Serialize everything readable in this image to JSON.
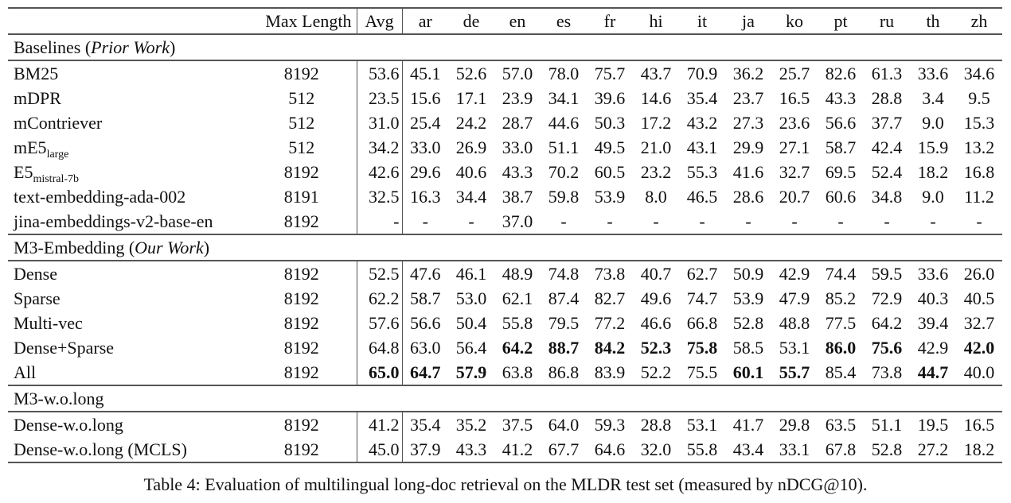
{
  "header": {
    "max_length": "Max Length",
    "avg": "Avg",
    "languages": [
      "ar",
      "de",
      "en",
      "es",
      "fr",
      "hi",
      "it",
      "ja",
      "ko",
      "pt",
      "ru",
      "th",
      "zh"
    ]
  },
  "groups": [
    {
      "title": "Baselines",
      "title_italic": "Prior Work",
      "rows": [
        {
          "name": "BM25",
          "sub": "",
          "max_length": "8192",
          "avg": "53.6",
          "values": [
            "45.1",
            "52.6",
            "57.0",
            "78.0",
            "75.7",
            "43.7",
            "70.9",
            "36.2",
            "25.7",
            "82.6",
            "61.3",
            "33.6",
            "34.6"
          ],
          "bold": []
        },
        {
          "name": "mDPR",
          "sub": "",
          "max_length": "512",
          "avg": "23.5",
          "values": [
            "15.6",
            "17.1",
            "23.9",
            "34.1",
            "39.6",
            "14.6",
            "35.4",
            "23.7",
            "16.5",
            "43.3",
            "28.8",
            "3.4",
            "9.5"
          ],
          "bold": []
        },
        {
          "name": "mContriever",
          "sub": "",
          "max_length": "512",
          "avg": "31.0",
          "values": [
            "25.4",
            "24.2",
            "28.7",
            "44.6",
            "50.3",
            "17.2",
            "43.2",
            "27.3",
            "23.6",
            "56.6",
            "37.7",
            "9.0",
            "15.3"
          ],
          "bold": []
        },
        {
          "name": "mE5",
          "sub": "large",
          "max_length": "512",
          "avg": "34.2",
          "values": [
            "33.0",
            "26.9",
            "33.0",
            "51.1",
            "49.5",
            "21.0",
            "43.1",
            "29.9",
            "27.1",
            "58.7",
            "42.4",
            "15.9",
            "13.2"
          ],
          "bold": []
        },
        {
          "name": "E5",
          "sub": "mistral-7b",
          "max_length": "8192",
          "avg": "42.6",
          "values": [
            "29.6",
            "40.6",
            "43.3",
            "70.2",
            "60.5",
            "23.2",
            "55.3",
            "41.6",
            "32.7",
            "69.5",
            "52.4",
            "18.2",
            "16.8"
          ],
          "bold": []
        },
        {
          "name": "text-embedding-ada-002",
          "sub": "",
          "max_length": "8191",
          "avg": "32.5",
          "values": [
            "16.3",
            "34.4",
            "38.7",
            "59.8",
            "53.9",
            "8.0",
            "46.5",
            "28.6",
            "20.7",
            "60.6",
            "34.8",
            "9.0",
            "11.2"
          ],
          "bold": []
        },
        {
          "name": "jina-embeddings-v2-base-en",
          "sub": "",
          "max_length": "8192",
          "avg": "-",
          "values": [
            "-",
            "-",
            "37.0",
            "-",
            "-",
            "-",
            "-",
            "-",
            "-",
            "-",
            "-",
            "-",
            "-"
          ],
          "bold": []
        }
      ]
    },
    {
      "title": "M3-Embedding",
      "title_italic": "Our Work",
      "rows": [
        {
          "name": "Dense",
          "sub": "",
          "max_length": "8192",
          "avg": "52.5",
          "values": [
            "47.6",
            "46.1",
            "48.9",
            "74.8",
            "73.8",
            "40.7",
            "62.7",
            "50.9",
            "42.9",
            "74.4",
            "59.5",
            "33.6",
            "26.0"
          ],
          "bold": []
        },
        {
          "name": "Sparse",
          "sub": "",
          "max_length": "8192",
          "avg": "62.2",
          "values": [
            "58.7",
            "53.0",
            "62.1",
            "87.4",
            "82.7",
            "49.6",
            "74.7",
            "53.9",
            "47.9",
            "85.2",
            "72.9",
            "40.3",
            "40.5"
          ],
          "bold": []
        },
        {
          "name": "Multi-vec",
          "sub": "",
          "max_length": "8192",
          "avg": "57.6",
          "values": [
            "56.6",
            "50.4",
            "55.8",
            "79.5",
            "77.2",
            "46.6",
            "66.8",
            "52.8",
            "48.8",
            "77.5",
            "64.2",
            "39.4",
            "32.7"
          ],
          "bold": []
        },
        {
          "name": "Dense+Sparse",
          "sub": "",
          "max_length": "8192",
          "avg": "64.8",
          "values": [
            "63.0",
            "56.4",
            "64.2",
            "88.7",
            "84.2",
            "52.3",
            "75.8",
            "58.5",
            "53.1",
            "86.0",
            "75.6",
            "42.9",
            "42.0"
          ],
          "bold": [
            "en",
            "es",
            "fr",
            "hi",
            "it",
            "pt",
            "ru",
            "zh"
          ]
        },
        {
          "name": "All",
          "sub": "",
          "max_length": "8192",
          "avg": "65.0",
          "values": [
            "64.7",
            "57.9",
            "63.8",
            "86.8",
            "83.9",
            "52.2",
            "75.5",
            "60.1",
            "55.7",
            "85.4",
            "73.8",
            "44.7",
            "40.0"
          ],
          "bold": [
            "avg",
            "ar",
            "de",
            "ja",
            "ko",
            "th"
          ]
        }
      ]
    },
    {
      "title": "M3-w.o.long",
      "title_italic": "",
      "rows": [
        {
          "name": "Dense-w.o.long",
          "sub": "",
          "max_length": "8192",
          "avg": "41.2",
          "values": [
            "35.4",
            "35.2",
            "37.5",
            "64.0",
            "59.3",
            "28.8",
            "53.1",
            "41.7",
            "29.8",
            "63.5",
            "51.1",
            "19.5",
            "16.5"
          ],
          "bold": []
        },
        {
          "name": "Dense-w.o.long (MCLS)",
          "sub": "",
          "max_length": "8192",
          "avg": "45.0",
          "values": [
            "37.9",
            "43.3",
            "41.2",
            "67.7",
            "64.6",
            "32.0",
            "55.8",
            "43.4",
            "33.1",
            "67.8",
            "52.8",
            "27.2",
            "18.2"
          ],
          "bold": []
        }
      ]
    }
  ],
  "caption": "Table 4: Evaluation of multilingual long-doc retrieval on the MLDR test set (measured by nDCG@10)."
}
